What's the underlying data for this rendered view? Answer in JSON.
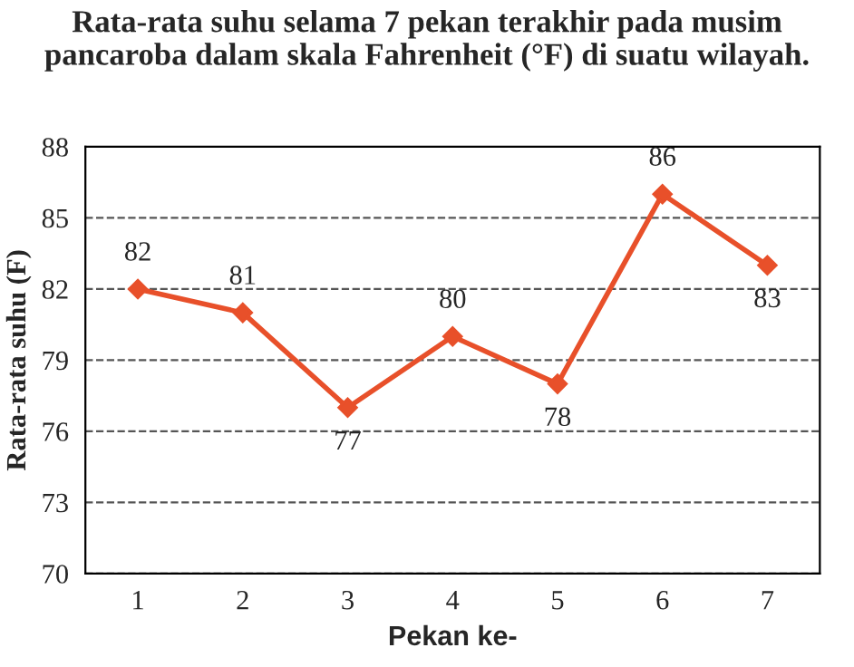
{
  "chart_data": {
    "type": "line",
    "title": "Rata-rata suhu selama 7 pekan terakhir pada musim pancaroba dalam skala Fahrenheit (°F) di suatu wilayah.",
    "xlabel": "Pekan ke-",
    "ylabel": "Rata-rata suhu (F)",
    "categories": [
      "1",
      "2",
      "3",
      "4",
      "5",
      "6",
      "7"
    ],
    "series": [
      {
        "color": "#e8502a",
        "values": [
          82,
          81,
          77,
          80,
          78,
          86,
          83
        ]
      }
    ],
    "ylim": [
      70,
      88
    ],
    "yticks": [
      70,
      73,
      76,
      79,
      82,
      85,
      88
    ],
    "grid": "y",
    "marker": "diamond",
    "line_style": "solid",
    "data_labels": true,
    "legend": false
  }
}
